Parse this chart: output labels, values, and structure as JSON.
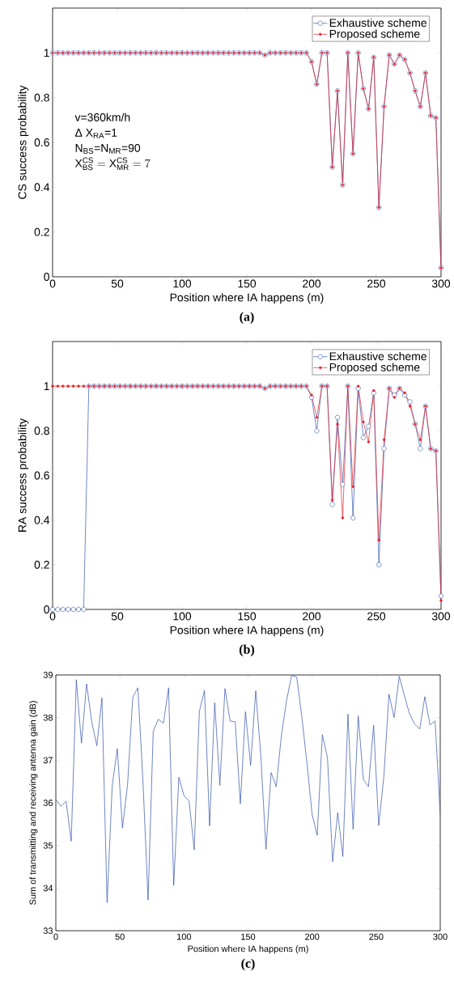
{
  "chart_data": [
    {
      "type": "line",
      "title": "(a)",
      "xlabel": "Position where IA happens (m)",
      "ylabel": "CS success probability",
      "annotations": [
        "v=360km/h",
        "Δ X$_{RA}$=1",
        "N$_{BS}$=N$_{MR}$=90",
        "\\mathrm{X}_{\\mathrm{BS}}^{\\mathrm{CS}}=\\mathrm{X}_{\\mathrm{MR}}^{\\mathrm{CS}}=7"
      ],
      "x": [
        0,
        4,
        8,
        12,
        16,
        20,
        24,
        28,
        32,
        36,
        40,
        44,
        48,
        52,
        56,
        60,
        64,
        68,
        72,
        76,
        80,
        84,
        88,
        92,
        96,
        100,
        104,
        108,
        112,
        116,
        120,
        124,
        128,
        132,
        136,
        140,
        144,
        148,
        152,
        156,
        160,
        164,
        168,
        172,
        176,
        180,
        184,
        188,
        192,
        196,
        200,
        204,
        208,
        212,
        216,
        220,
        224,
        228,
        232,
        236,
        240,
        244,
        248,
        252,
        256,
        260,
        264,
        268,
        272,
        276,
        280,
        284,
        288,
        292,
        296,
        300
      ],
      "xlim": [
        0,
        300
      ],
      "ylim": [
        0,
        1.2
      ],
      "xticks": [
        0,
        50,
        100,
        150,
        200,
        250,
        300
      ],
      "yticks": [
        0,
        0.2,
        0.4,
        0.6,
        0.8,
        1
      ],
      "legend": "top right",
      "marker": "circle",
      "series": [
        {
          "name": "Exhaustive scheme",
          "color": "#3355b0",
          "values": [
            1,
            1,
            1,
            1,
            1,
            1,
            1,
            1,
            1,
            1,
            1,
            1,
            1,
            1,
            1,
            1,
            1,
            1,
            1,
            1,
            1,
            1,
            1,
            1,
            1,
            1,
            1,
            1,
            1,
            1,
            1,
            1,
            1,
            1,
            1,
            1,
            1,
            1,
            1,
            1,
            1,
            0.99,
            1,
            1,
            1,
            1,
            1,
            1,
            1,
            1,
            0.96,
            0.86,
            1,
            1,
            0.49,
            0.83,
            0.41,
            1,
            0.55,
            1,
            0.84,
            0.75,
            0.98,
            0.31,
            0.76,
            0.99,
            0.95,
            0.99,
            0.97,
            0.91,
            0.83,
            0.76,
            0.91,
            0.72,
            0.71,
            0.04
          ]
        },
        {
          "name": "Proposed scheme",
          "color": "#e8242b",
          "values": [
            1,
            1,
            1,
            1,
            1,
            1,
            1,
            1,
            1,
            1,
            1,
            1,
            1,
            1,
            1,
            1,
            1,
            1,
            1,
            1,
            1,
            1,
            1,
            1,
            1,
            1,
            1,
            1,
            1,
            1,
            1,
            1,
            1,
            1,
            1,
            1,
            1,
            1,
            1,
            1,
            1,
            0.99,
            1,
            1,
            1,
            1,
            1,
            1,
            1,
            1,
            0.96,
            0.86,
            1,
            1,
            0.49,
            0.83,
            0.41,
            1,
            0.55,
            1,
            0.84,
            0.75,
            0.98,
            0.31,
            0.76,
            0.99,
            0.95,
            0.99,
            0.97,
            0.91,
            0.83,
            0.76,
            0.91,
            0.72,
            0.71,
            0.04
          ]
        }
      ]
    },
    {
      "type": "line",
      "title": "(b)",
      "xlabel": "Position where IA happens (m)",
      "ylabel": "RA success probability",
      "x": [
        0,
        4,
        8,
        12,
        16,
        20,
        24,
        28,
        32,
        36,
        40,
        44,
        48,
        52,
        56,
        60,
        64,
        68,
        72,
        76,
        80,
        84,
        88,
        92,
        96,
        100,
        104,
        108,
        112,
        116,
        120,
        124,
        128,
        132,
        136,
        140,
        144,
        148,
        152,
        156,
        160,
        164,
        168,
        172,
        176,
        180,
        184,
        188,
        192,
        196,
        200,
        204,
        208,
        212,
        216,
        220,
        224,
        228,
        232,
        236,
        240,
        244,
        248,
        252,
        256,
        260,
        264,
        268,
        272,
        276,
        280,
        284,
        288,
        292,
        296,
        300
      ],
      "xlim": [
        0,
        300
      ],
      "ylim": [
        0,
        1.2
      ],
      "xticks": [
        0,
        50,
        100,
        150,
        200,
        250,
        300
      ],
      "yticks": [
        0,
        0.2,
        0.4,
        0.6,
        0.8,
        1
      ],
      "legend": "top right",
      "marker": "circle",
      "series": [
        {
          "name": "Exhaustive scheme",
          "color": "#3355b0",
          "values": [
            0,
            0,
            0,
            0,
            0,
            0,
            0,
            1,
            1,
            1,
            1,
            1,
            1,
            1,
            1,
            1,
            1,
            1,
            1,
            1,
            1,
            1,
            1,
            1,
            1,
            1,
            1,
            1,
            1,
            1,
            1,
            1,
            1,
            1,
            1,
            1,
            1,
            1,
            1,
            1,
            1,
            0.99,
            1,
            1,
            1,
            1,
            1,
            1,
            1,
            1,
            0.95,
            0.8,
            1,
            1,
            0.47,
            0.86,
            0.56,
            1,
            0.41,
            0.99,
            0.77,
            0.82,
            0.97,
            0.2,
            0.72,
            0.99,
            0.96,
            0.99,
            0.96,
            0.93,
            0.83,
            0.72,
            0.91,
            0.72,
            0.71,
            0.06
          ]
        },
        {
          "name": "Proposed scheme",
          "color": "#e8242b",
          "values": [
            1,
            1,
            1,
            1,
            1,
            1,
            1,
            1,
            1,
            1,
            1,
            1,
            1,
            1,
            1,
            1,
            1,
            1,
            1,
            1,
            1,
            1,
            1,
            1,
            1,
            1,
            1,
            1,
            1,
            1,
            1,
            1,
            1,
            1,
            1,
            1,
            1,
            1,
            1,
            1,
            1,
            0.99,
            1,
            1,
            1,
            1,
            1,
            1,
            1,
            1,
            0.96,
            0.86,
            1,
            1,
            0.49,
            0.83,
            0.41,
            1,
            0.55,
            1,
            0.84,
            0.75,
            0.98,
            0.31,
            0.76,
            0.99,
            0.95,
            0.99,
            0.97,
            0.91,
            0.83,
            0.76,
            0.91,
            0.72,
            0.71,
            0.04
          ]
        }
      ]
    },
    {
      "type": "line",
      "title": "(c)",
      "xlabel": "Position where IA happens (m)",
      "ylabel": "Sum of transmitting and receiving antenna gain (dB)",
      "x": [
        0,
        4,
        8,
        12,
        16,
        20,
        24,
        28,
        32,
        36,
        40,
        44,
        48,
        52,
        56,
        60,
        64,
        68,
        72,
        76,
        80,
        84,
        88,
        92,
        96,
        100,
        104,
        108,
        112,
        116,
        120,
        124,
        128,
        132,
        136,
        140,
        144,
        148,
        152,
        156,
        160,
        164,
        168,
        172,
        176,
        180,
        184,
        188,
        192,
        196,
        200,
        204,
        208,
        212,
        216,
        220,
        224,
        228,
        232,
        236,
        240,
        244,
        248,
        252,
        256,
        260,
        264,
        268,
        272,
        276,
        280,
        284,
        288,
        292,
        296,
        300
      ],
      "xlim": [
        0,
        300
      ],
      "ylim": [
        33,
        39
      ],
      "xticks": [
        0,
        50,
        100,
        150,
        200,
        250,
        300
      ],
      "yticks": [
        33,
        34,
        35,
        36,
        37,
        38,
        39
      ],
      "series": [
        {
          "color": "#2e4fa8",
          "values": [
            36.08,
            35.92,
            36.04,
            35.1,
            38.89,
            37.4,
            38.79,
            37.9,
            37.34,
            38.46,
            33.66,
            36.4,
            37.27,
            35.41,
            36.43,
            38.47,
            38.7,
            36.5,
            33.72,
            37.68,
            37.96,
            37.87,
            38.7,
            34.06,
            36.6,
            36.17,
            36.04,
            34.9,
            38.14,
            38.64,
            35.46,
            38.35,
            36.41,
            38.68,
            37.92,
            37.9,
            35.98,
            38.14,
            36.88,
            38.63,
            37.09,
            34.91,
            36.71,
            36.38,
            37.57,
            38.39,
            38.99,
            38.95,
            38.01,
            36.93,
            35.73,
            35.24,
            37.6,
            37.06,
            34.62,
            35.77,
            34.74,
            38.08,
            35.38,
            38.04,
            36.55,
            36.38,
            37.82,
            35.47,
            36.62,
            38.55,
            38.0,
            38.97,
            38.52,
            38.09,
            37.85,
            37.73,
            38.49,
            37.83,
            37.92,
            35.73
          ]
        }
      ]
    }
  ]
}
